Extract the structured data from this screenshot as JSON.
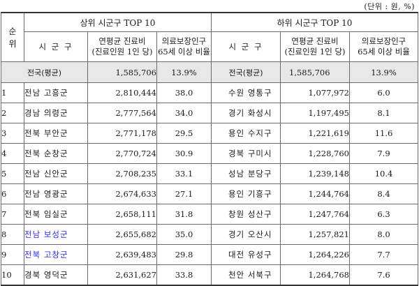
{
  "unit_note": "(단위 : 원, %)",
  "header": {
    "rank": "순위",
    "top_group": "상위 시군구 TOP 10",
    "bottom_group": "하위 시군구 TOP 10",
    "region_col": "시 군 구",
    "cost_col_line1": "연평균 진료비",
    "cost_col_line2": "(진료인원 1인 당)",
    "ratio_col_line1": "의료보장인구",
    "ratio_col_line2": "65세 이상 비율"
  },
  "national": {
    "label": "전국(평균)",
    "cost": "1,585,706",
    "ratio": "13.9%"
  },
  "rows": [
    {
      "rank": "1",
      "top_region": "전남 고흥군",
      "top_cost": "2,810,444",
      "top_ratio": "38.0",
      "bottom_region": "수원 영통구",
      "bottom_cost": "1,077,972",
      "bottom_ratio": "6.0"
    },
    {
      "rank": "2",
      "top_region": "경남 의령군",
      "top_cost": "2,777,564",
      "top_ratio": "34.0",
      "bottom_region": "경기 화성시",
      "bottom_cost": "1,197,495",
      "bottom_ratio": "8.1"
    },
    {
      "rank": "3",
      "top_region": "전북 부안군",
      "top_cost": "2,771,178",
      "top_ratio": "29.5",
      "bottom_region": "용인 수지구",
      "bottom_cost": "1,221,619",
      "bottom_ratio": "11.6"
    },
    {
      "rank": "4",
      "top_region": "전북 순창군",
      "top_cost": "2,770,724",
      "top_ratio": "30.9",
      "bottom_region": "경북 구미시",
      "bottom_cost": "1,228,760",
      "bottom_ratio": "7.9"
    },
    {
      "rank": "5",
      "top_region": "전남 신안군",
      "top_cost": "2,708,235",
      "top_ratio": "33.1",
      "bottom_region": "성남 분당구",
      "bottom_cost": "1,239,148",
      "bottom_ratio": "10.4"
    },
    {
      "rank": "6",
      "top_region": "전남 영광군",
      "top_cost": "2,674,633",
      "top_ratio": "27.1",
      "bottom_region": "용인 기흥구",
      "bottom_cost": "1,244,764",
      "bottom_ratio": "8.4"
    },
    {
      "rank": "7",
      "top_region": "전북 임실군",
      "top_cost": "2,658,111",
      "top_ratio": "31.8",
      "bottom_region": "창원 성산구",
      "bottom_cost": "1,247,764",
      "bottom_ratio": "6.3"
    },
    {
      "rank": "8",
      "top_region": "전남 보성군",
      "top_cost": "2,655,682",
      "top_ratio": "35.0",
      "bottom_region": "경기 오산시",
      "bottom_cost": "1,257,821",
      "bottom_ratio": "8.0"
    },
    {
      "rank": "9",
      "top_region": "전북 고창군",
      "top_cost": "2,639,483",
      "top_ratio": "29.8",
      "bottom_region": "대전 유성구",
      "bottom_cost": "1,264,226",
      "bottom_ratio": "7.7"
    },
    {
      "rank": "10",
      "top_region": "경북 영덕군",
      "top_cost": "2,631,627",
      "top_ratio": "33.8",
      "bottom_region": "천안 서북구",
      "bottom_cost": "1,264,768",
      "bottom_ratio": "7.6"
    }
  ],
  "colors": {
    "highlight_text": "#2a2aff",
    "national_row_bg": "#e8e8e8",
    "border": "#6b6b6b"
  }
}
